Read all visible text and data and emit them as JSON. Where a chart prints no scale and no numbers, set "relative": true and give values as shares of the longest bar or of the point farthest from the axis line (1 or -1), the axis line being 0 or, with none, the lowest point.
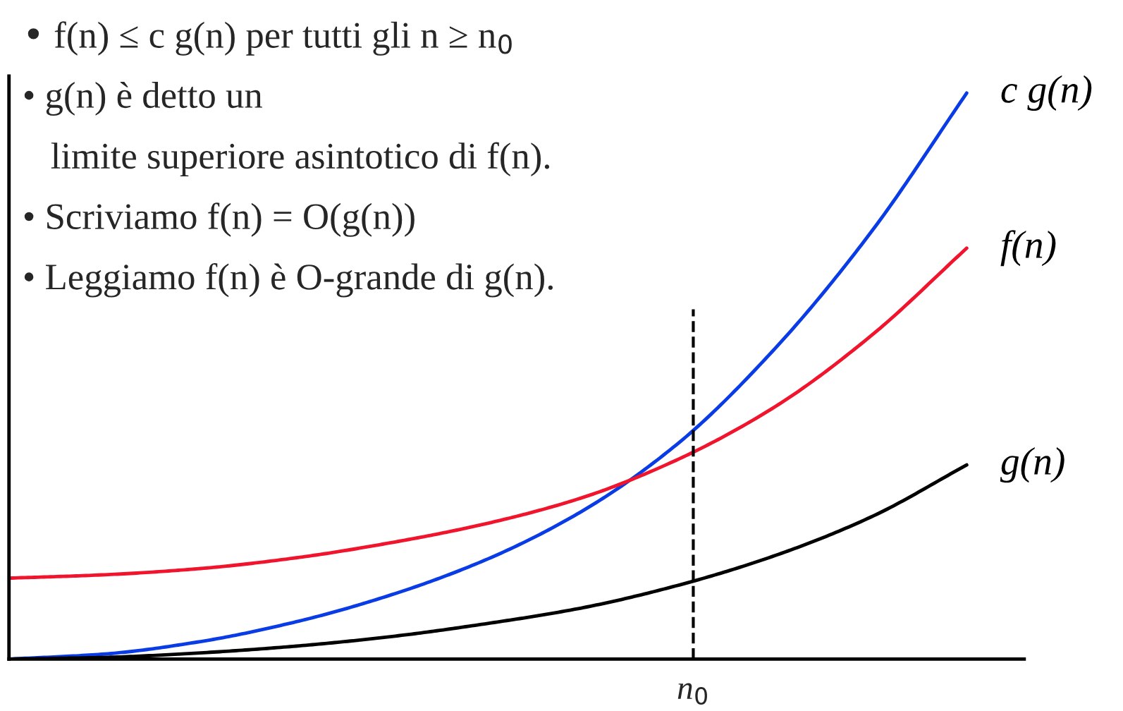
{
  "chart_data": {
    "type": "line",
    "relative": true,
    "categories": [
      null,
      null,
      null,
      null,
      null,
      null,
      null,
      null,
      null,
      null,
      null
    ],
    "series": [
      {
        "name": "c g(n)",
        "color": "#0a3ce6",
        "values": [
          0,
          0.009,
          0.031,
          0.066,
          0.114,
          0.177,
          0.263,
          0.383,
          0.549,
          0.754,
          1.0
        ]
      },
      {
        "name": "f(n)",
        "color": "#f0142d",
        "values": [
          0.143,
          0.149,
          0.16,
          0.179,
          0.206,
          0.24,
          0.286,
          0.354,
          0.446,
          0.571,
          0.726
        ]
      },
      {
        "name": "g(n)",
        "color": "#000000",
        "values": [
          0,
          0.003,
          0.011,
          0.023,
          0.04,
          0.063,
          0.091,
          0.131,
          0.183,
          0.251,
          0.343
        ]
      }
    ],
    "annotations": [
      "• f(n) ≤ c g(n) per tutti gli n ≥ n$_{0}$",
      "• g(n) è detto un",
      "limite superiore asintotico di f(n).",
      "• Scriviamo f(n) = O(g(n))",
      "• Leggiamo f(n) è O-grande di g(n).",
      "n$_{0}$"
    ],
    "legend": false,
    "marker": "none",
    "line_style": "solid"
  }
}
